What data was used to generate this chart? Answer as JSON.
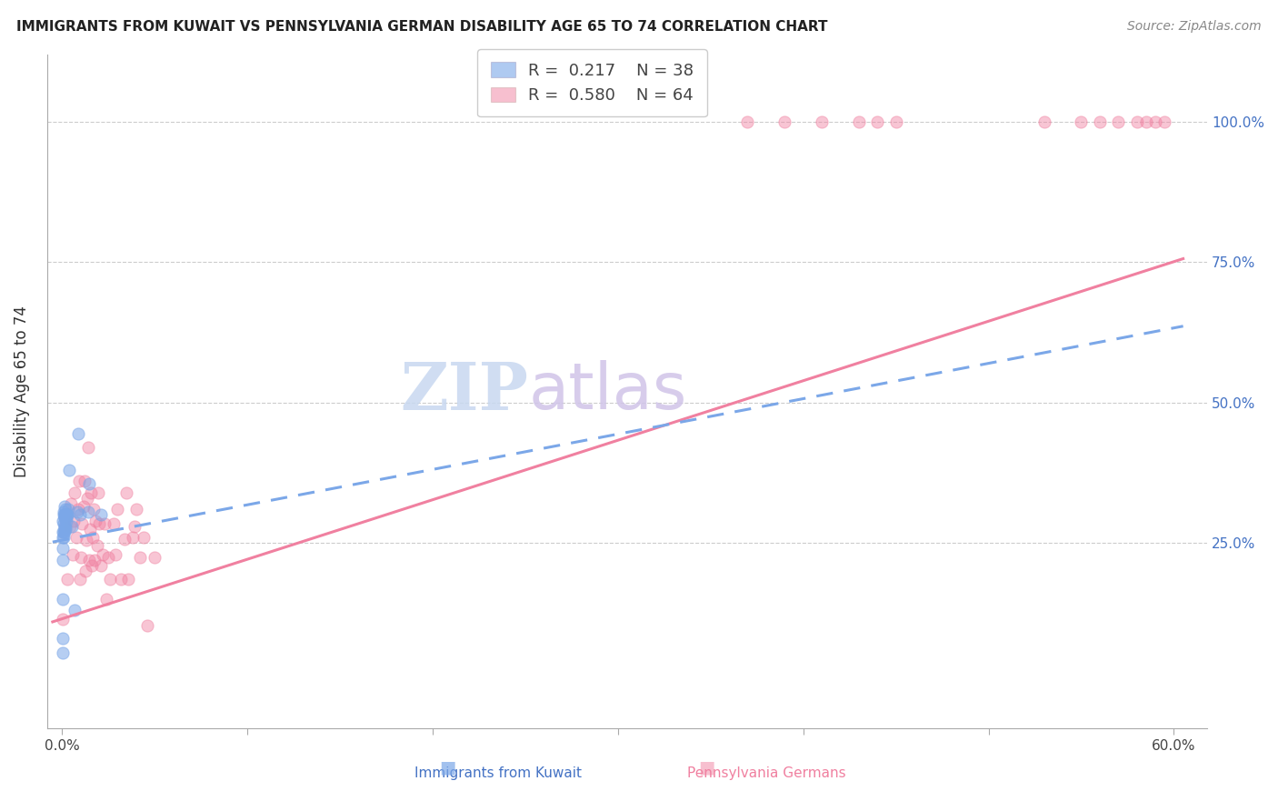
{
  "title": "IMMIGRANTS FROM KUWAIT VS PENNSYLVANIA GERMAN DISABILITY AGE 65 TO 74 CORRELATION CHART",
  "source": "Source: ZipAtlas.com",
  "ylabel": "Disability Age 65 to 74",
  "xlabel_blue": "Immigrants from Kuwait",
  "xlabel_pink": "Pennsylvania Germans",
  "R_blue": 0.217,
  "N_blue": 38,
  "R_pink": 0.58,
  "N_pink": 64,
  "blue_color": "#7BA7E8",
  "pink_color": "#F080A0",
  "blue_scatter_alpha": 0.55,
  "pink_scatter_alpha": 0.45,
  "scatter_size": 90,
  "blue_line_color": "#7BA7E8",
  "pink_line_color": "#F080A0",
  "blue_points_x": [
    0.0005,
    0.0005,
    0.0005,
    0.0005,
    0.0005,
    0.0007,
    0.0007,
    0.0007,
    0.0008,
    0.0008,
    0.001,
    0.001,
    0.001,
    0.0012,
    0.0012,
    0.0013,
    0.0013,
    0.0015,
    0.0015,
    0.0015,
    0.0017,
    0.0017,
    0.002,
    0.002,
    0.0022,
    0.0025,
    0.0028,
    0.003,
    0.0035,
    0.004,
    0.0055,
    0.007,
    0.0085,
    0.009,
    0.01,
    0.014,
    0.0145,
    0.021
  ],
  "blue_points_y": [
    0.055,
    0.08,
    0.15,
    0.22,
    0.26,
    0.24,
    0.27,
    0.29,
    0.26,
    0.3,
    0.27,
    0.285,
    0.305,
    0.28,
    0.3,
    0.27,
    0.295,
    0.275,
    0.295,
    0.315,
    0.275,
    0.3,
    0.28,
    0.31,
    0.29,
    0.295,
    0.3,
    0.3,
    0.31,
    0.38,
    0.28,
    0.13,
    0.305,
    0.445,
    0.3,
    0.305,
    0.355,
    0.3
  ],
  "pink_points_x": [
    0.0005,
    0.003,
    0.0045,
    0.005,
    0.006,
    0.0065,
    0.007,
    0.008,
    0.009,
    0.0095,
    0.01,
    0.0105,
    0.011,
    0.0115,
    0.012,
    0.0125,
    0.013,
    0.0135,
    0.014,
    0.0145,
    0.015,
    0.0155,
    0.016,
    0.0165,
    0.017,
    0.0175,
    0.018,
    0.019,
    0.0195,
    0.02,
    0.021,
    0.022,
    0.023,
    0.024,
    0.025,
    0.026,
    0.028,
    0.029,
    0.03,
    0.032,
    0.034,
    0.035,
    0.036,
    0.038,
    0.039,
    0.04,
    0.042,
    0.044,
    0.046,
    0.05,
    0.37,
    0.39,
    0.41,
    0.43,
    0.44,
    0.45,
    0.53,
    0.55,
    0.56,
    0.57,
    0.58,
    0.585,
    0.59,
    0.595
  ],
  "pink_points_y": [
    0.115,
    0.185,
    0.28,
    0.32,
    0.23,
    0.29,
    0.34,
    0.26,
    0.31,
    0.36,
    0.185,
    0.225,
    0.285,
    0.315,
    0.36,
    0.2,
    0.255,
    0.33,
    0.42,
    0.22,
    0.275,
    0.34,
    0.21,
    0.26,
    0.31,
    0.22,
    0.29,
    0.245,
    0.34,
    0.285,
    0.21,
    0.23,
    0.285,
    0.15,
    0.225,
    0.185,
    0.285,
    0.23,
    0.31,
    0.185,
    0.257,
    0.34,
    0.185,
    0.26,
    0.28,
    0.31,
    0.225,
    0.26,
    0.103,
    0.225,
    1.0,
    1.0,
    1.0,
    1.0,
    1.0,
    1.0,
    1.0,
    1.0,
    1.0,
    1.0,
    1.0,
    1.0,
    1.0,
    1.0
  ],
  "grid_color": "#CCCCCC",
  "bg_color": "#FFFFFF",
  "pink_line_intercept": 0.115,
  "pink_line_slope": 1.06,
  "blue_line_intercept": 0.255,
  "blue_line_slope": 0.63
}
